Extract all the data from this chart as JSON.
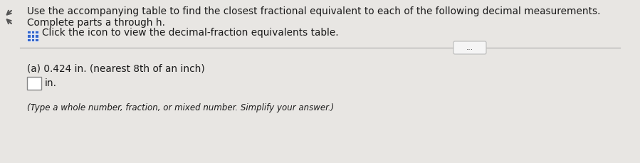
{
  "bg_color": "#e8e6e3",
  "content_bg": "#f0eeeb",
  "line1": "Use the accompanying table to find the closest fractional equivalent to each of the following decimal measurements.",
  "line2": "Complete parts a through h.",
  "icon_text": "Click the icon to view the decimal-fraction equivalents table.",
  "divider_button_text": "...",
  "part_a_label": "(a) 0.424 in. (nearest 8th of an inch)",
  "box_label": "in.",
  "bottom_note": "(Type a whole number, fraction, or mixed number. Simplify your answer.)",
  "main_text_color": "#1a1a1a",
  "icon_color_outer": "#3366cc",
  "icon_color_inner": "#5588ee",
  "divider_color": "#aaaaaa",
  "button_color": "#f5f5f5",
  "button_border_color": "#bbbbbb",
  "box_color": "#ffffff",
  "box_border_color": "#888888",
  "arrow_color": "#555555",
  "font_size_main": 9.8,
  "font_size_icon_text": 9.8,
  "font_size_part": 9.8,
  "font_size_note": 8.5
}
